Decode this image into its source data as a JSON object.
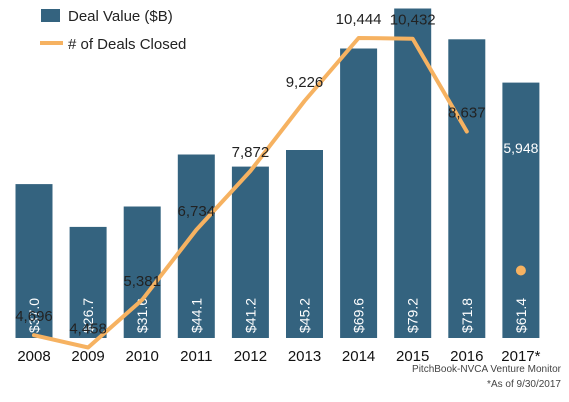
{
  "chart_data": {
    "type": "bar",
    "categories": [
      "2008",
      "2009",
      "2010",
      "2011",
      "2012",
      "2013",
      "2014",
      "2015",
      "2016",
      "2017*"
    ],
    "series": [
      {
        "name": "Deal Value ($B)",
        "type": "bar",
        "values": [
          37.0,
          26.7,
          31.6,
          44.1,
          41.2,
          45.2,
          69.6,
          79.2,
          71.8,
          61.4
        ],
        "labels": [
          "$37.0",
          "$26.7",
          "$31.6",
          "$44.1",
          "$41.2",
          "$45.2",
          "$69.6",
          "$79.2",
          "$71.8",
          "$61.4"
        ],
        "color": "#34637f"
      },
      {
        "name": "# of Deals Closed",
        "type": "line",
        "values": [
          4696,
          4458,
          5381,
          6734,
          7872,
          9226,
          10444,
          10432,
          8637,
          5948
        ],
        "labels": [
          "4,696",
          "4,458",
          "5,381",
          "6,734",
          "7,872",
          "9,226",
          "10,444",
          "10,432",
          "8,637",
          "5,948"
        ],
        "color": "#f6b261"
      }
    ],
    "source": "PitchBook-NVCA Venture Monitor",
    "note": "*As of 9/30/2017"
  }
}
